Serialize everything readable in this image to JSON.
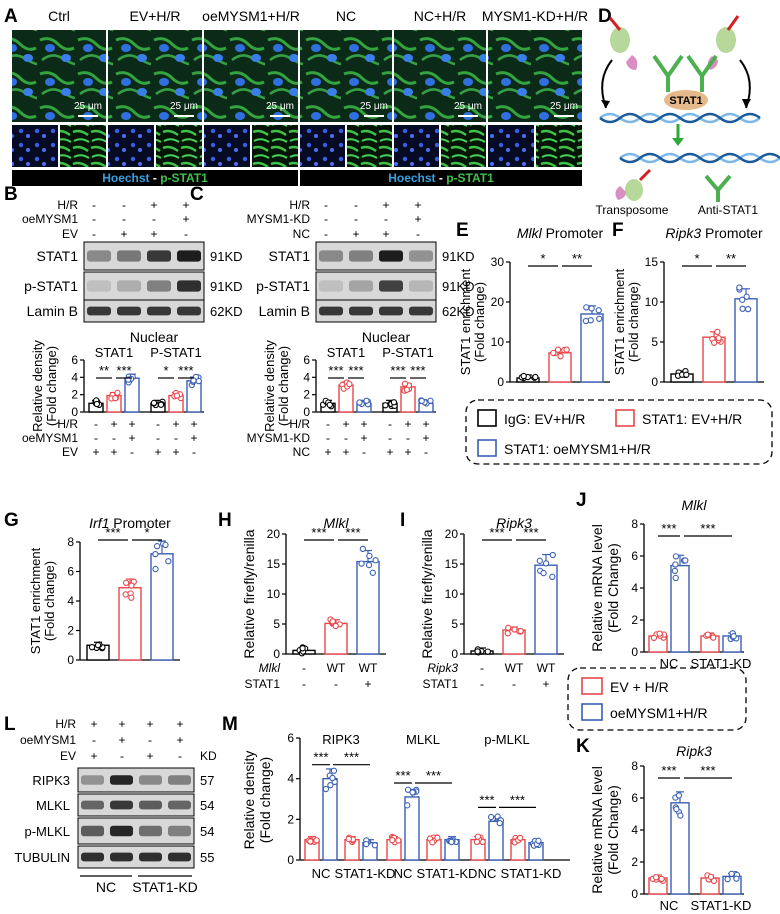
{
  "panels": {
    "A": "A",
    "B": "B",
    "C": "C",
    "D": "D",
    "E": "E",
    "F": "F",
    "G": "G",
    "H": "H",
    "I": "I",
    "J": "J",
    "K": "K",
    "L": "L",
    "M": "M"
  },
  "panelA": {
    "labels": [
      "Ctrl",
      "EV+H/R",
      "oeMYSM1+H/R",
      "NC",
      "NC+H/R",
      "MYSM1-KD+H/R"
    ],
    "scalebar": "25 μm",
    "caption_hoechst": "Hoechst",
    "caption_sep": " - ",
    "caption_pstat1": "p-STAT1"
  },
  "panelB": {
    "rows": [
      "H/R",
      "oeMYSM1",
      "EV"
    ],
    "row_vals": [
      [
        "-",
        "-",
        "+",
        "+"
      ],
      [
        "-",
        "-",
        "-",
        "+"
      ],
      [
        "-",
        "+",
        "+",
        "-"
      ]
    ],
    "blots": [
      "STAT1",
      "p-STAT1",
      "Lamin B"
    ],
    "kd": [
      "91KD",
      "91KD",
      "62KD"
    ],
    "title": "Nuclear",
    "groups": [
      "STAT1",
      "P-STAT1"
    ],
    "sig": [
      "**",
      "***",
      "*",
      "***"
    ],
    "ylabel1": "Relative density",
    "ylabel2": "(Fold change)",
    "yticks": [
      "0",
      "2",
      "4",
      "6"
    ],
    "bottom_rows": [
      "H/R",
      "oeMYSM1",
      "EV"
    ],
    "bottom_vals": [
      [
        "-",
        "+",
        "+",
        "-",
        "+",
        "+"
      ],
      [
        "-",
        "-",
        "+",
        "-",
        "-",
        "+"
      ],
      [
        "+",
        "+",
        "-",
        "+",
        "+",
        "-"
      ]
    ]
  },
  "panelC": {
    "rows": [
      "H/R",
      "MYSM1-KD",
      "NC"
    ],
    "row_vals": [
      [
        "-",
        "-",
        "+",
        "+"
      ],
      [
        "-",
        "-",
        "-",
        "+"
      ],
      [
        "-",
        "+",
        "+",
        "-"
      ]
    ],
    "blots": [
      "STAT1",
      "p-STAT1",
      "Lamin B"
    ],
    "kd": [
      "91KD",
      "91KD",
      "62KD"
    ],
    "title": "Nuclear",
    "groups": [
      "STAT1",
      "P-STAT1"
    ],
    "sig": [
      "***",
      "***",
      "***",
      "***"
    ],
    "ylabel1": "Relative density",
    "ylabel2": "(Fold change)",
    "yticks": [
      "0",
      "2",
      "4",
      "6"
    ],
    "bottom_rows": [
      "H/R",
      "MYSM1-KD",
      "NC"
    ],
    "bottom_vals": [
      [
        "-",
        "+",
        "+",
        "-",
        "+",
        "+"
      ],
      [
        "-",
        "-",
        "+",
        "-",
        "-",
        "+"
      ],
      [
        "+",
        "+",
        "-",
        "+",
        "+",
        "-"
      ]
    ]
  },
  "panelD": {
    "protein": "STAT1",
    "transposome": "Transposome",
    "anti": "Anti-STAT1"
  },
  "panelE": {
    "gene": "Mlkl",
    "suffix": " Promoter",
    "ylabel1": "STAT1 enrichment",
    "ylabel2": "(Fold change)",
    "yticks": [
      "0",
      "10",
      "20",
      "30"
    ],
    "sig": [
      "*",
      "**"
    ]
  },
  "panelF": {
    "gene": "Ripk3",
    "suffix": " Promoter",
    "ylabel1": "STAT1 enrichment",
    "ylabel2": "(Fold change)",
    "yticks": [
      "0",
      "5",
      "10",
      "15"
    ],
    "sig": [
      "*",
      "**"
    ]
  },
  "legendEF": [
    "IgG: EV+H/R",
    "STAT1: EV+H/R",
    "STAT1: oeMYSM1+H/R"
  ],
  "panelG": {
    "gene": "Irf1",
    "suffix": " Promoter",
    "ylabel1": "STAT1 enrichment",
    "ylabel2": "(Fold change)",
    "yticks": [
      "0",
      "2",
      "4",
      "6",
      "8"
    ],
    "sig": [
      "***",
      "*"
    ]
  },
  "panelH": {
    "title": "Mlkl",
    "ylabel": "Relative firefly/renilla",
    "yticks": [
      "0",
      "5",
      "10",
      "15",
      "20"
    ],
    "sig": [
      "***",
      "***"
    ],
    "row1_label": "Mlkl",
    "row1": [
      "-",
      "WT",
      "WT"
    ],
    "row2_label": "STAT1",
    "row2": [
      "-",
      "-",
      "+"
    ]
  },
  "panelI": {
    "title": "Ripk3",
    "ylabel": "Relative firefly/renilla",
    "yticks": [
      "0",
      "5",
      "10",
      "15",
      "20"
    ],
    "sig": [
      "***",
      "***"
    ],
    "row1_label": "Ripk3",
    "row1": [
      "-",
      "WT",
      "WT"
    ],
    "row2_label": "STAT1",
    "row2": [
      "-",
      "-",
      "+"
    ]
  },
  "panelJ": {
    "title": "Mlkl",
    "ylabel1": "Relative mRNA level",
    "ylabel2": "(Fold Change)",
    "yticks": [
      "0",
      "2",
      "4",
      "6",
      "8"
    ],
    "groups": [
      "NC",
      "STAT1-KD"
    ],
    "sig": [
      "***",
      "***"
    ]
  },
  "legendJK": [
    "EV + H/R",
    "oeMYSM1+H/R"
  ],
  "panelK": {
    "title": "Ripk3",
    "ylabel1": "Relative mRNA level",
    "ylabel2": "(Fold Change)",
    "yticks": [
      "0",
      "2",
      "4",
      "6",
      "8"
    ],
    "groups": [
      "NC",
      "STAT1-KD"
    ],
    "sig": [
      "***",
      "***"
    ]
  },
  "panelL": {
    "rows": [
      "H/R",
      "oeMYSM1",
      "EV"
    ],
    "row_vals": [
      [
        "+",
        "+",
        "+",
        "+"
      ],
      [
        "-",
        "+",
        "-",
        "+"
      ],
      [
        "+",
        "-",
        "+",
        "-"
      ]
    ],
    "kd_header": "KD",
    "blots": [
      "RIPK3",
      "MLKL",
      "p-MLKL",
      "TUBULIN"
    ],
    "kd": [
      "57",
      "54",
      "54",
      "55"
    ],
    "groups": [
      "NC",
      "STAT1-KD"
    ]
  },
  "panelM": {
    "ylabel1": "Relative density",
    "ylabel2": "(Fold change)",
    "yticks": [
      "0",
      "2",
      "4",
      "6"
    ],
    "groups": [
      "RIPK3",
      "MLKL",
      "p-MLKL"
    ],
    "xlabels": [
      "NC",
      "STAT1-KD",
      "NC",
      "STAT1-KD",
      "NC",
      "STAT1-KD"
    ],
    "sig": [
      "***",
      "***",
      "***",
      "***",
      "***",
      "***"
    ]
  },
  "colors": {
    "ev": "#e8474b",
    "oe": "#3a5fb5",
    "igg": "#000000",
    "hoechst": "#3aa0e0",
    "pstat1": "#3ec24a"
  },
  "chart_data": [
    {
      "panel": "B",
      "type": "bar",
      "title": "Nuclear",
      "categories": [
        "STAT1",
        "P-STAT1"
      ],
      "series": [
        {
          "name": "Control",
          "values": [
            1.0,
            1.0
          ]
        },
        {
          "name": "EV+H/R",
          "values": [
            1.9,
            1.9
          ]
        },
        {
          "name": "oeMYSM1+H/R",
          "values": [
            3.9,
            3.6
          ]
        }
      ],
      "ylim": [
        0,
        6
      ]
    },
    {
      "panel": "C",
      "type": "bar",
      "title": "Nuclear",
      "categories": [
        "STAT1",
        "P-STAT1"
      ],
      "series": [
        {
          "name": "Control",
          "values": [
            1.0,
            1.0
          ]
        },
        {
          "name": "NC+H/R",
          "values": [
            3.1,
            2.9
          ]
        },
        {
          "name": "MYSM1-KD+H/R",
          "values": [
            1.0,
            1.0
          ]
        }
      ],
      "ylim": [
        0,
        6
      ]
    },
    {
      "panel": "E",
      "type": "bar",
      "title": "Mlkl Promoter",
      "categories": [
        "IgG: EV+H/R",
        "STAT1: EV+H/R",
        "STAT1: oeMYSM1+H/R"
      ],
      "values": [
        1.0,
        7.3,
        17.0
      ],
      "ylim": [
        0,
        30
      ]
    },
    {
      "panel": "F",
      "type": "bar",
      "title": "Ripk3 Promoter",
      "categories": [
        "IgG: EV+H/R",
        "STAT1: EV+H/R",
        "STAT1: oeMYSM1+H/R"
      ],
      "values": [
        1.0,
        5.6,
        10.4
      ],
      "ylim": [
        0,
        15
      ]
    },
    {
      "panel": "G",
      "type": "bar",
      "title": "Irf1 Promoter",
      "categories": [
        "IgG: EV+H/R",
        "STAT1: EV+H/R",
        "STAT1: oeMYSM1+H/R"
      ],
      "values": [
        1.0,
        4.9,
        7.2
      ],
      "ylim": [
        0,
        8
      ]
    },
    {
      "panel": "H",
      "type": "bar",
      "title": "Mlkl",
      "categories": [
        "-",
        "WT",
        "WT+STAT1"
      ],
      "values": [
        0.6,
        5.1,
        15.4
      ],
      "ylim": [
        0,
        20
      ]
    },
    {
      "panel": "I",
      "type": "bar",
      "title": "Ripk3",
      "categories": [
        "-",
        "WT",
        "WT+STAT1"
      ],
      "values": [
        0.5,
        4.0,
        14.8
      ],
      "ylim": [
        0,
        20
      ]
    },
    {
      "panel": "J",
      "type": "bar",
      "title": "Mlkl",
      "categories": [
        "NC",
        "STAT1-KD"
      ],
      "series": [
        {
          "name": "EV + H/R",
          "values": [
            1.0,
            1.0
          ]
        },
        {
          "name": "oeMYSM1+H/R",
          "values": [
            5.4,
            1.0
          ]
        }
      ],
      "ylim": [
        0,
        8
      ]
    },
    {
      "panel": "K",
      "type": "bar",
      "title": "Ripk3",
      "categories": [
        "NC",
        "STAT1-KD"
      ],
      "series": [
        {
          "name": "EV + H/R",
          "values": [
            1.0,
            1.0
          ]
        },
        {
          "name": "oeMYSM1+H/R",
          "values": [
            5.7,
            1.1
          ]
        }
      ],
      "ylim": [
        0,
        8
      ]
    },
    {
      "panel": "M",
      "type": "bar",
      "categories": [
        "RIPK3 NC",
        "RIPK3 STAT1-KD",
        "MLKL NC",
        "MLKL STAT1-KD",
        "p-MLKL NC",
        "p-MLKL STAT1-KD"
      ],
      "series": [
        {
          "name": "EV + H/R",
          "values": [
            1.0,
            1.0,
            1.0,
            1.0,
            1.0,
            1.0
          ]
        },
        {
          "name": "oeMYSM1+H/R",
          "values": [
            4.0,
            0.85,
            3.1,
            1.0,
            1.9,
            0.85
          ]
        }
      ],
      "ylim": [
        0,
        6
      ]
    }
  ]
}
